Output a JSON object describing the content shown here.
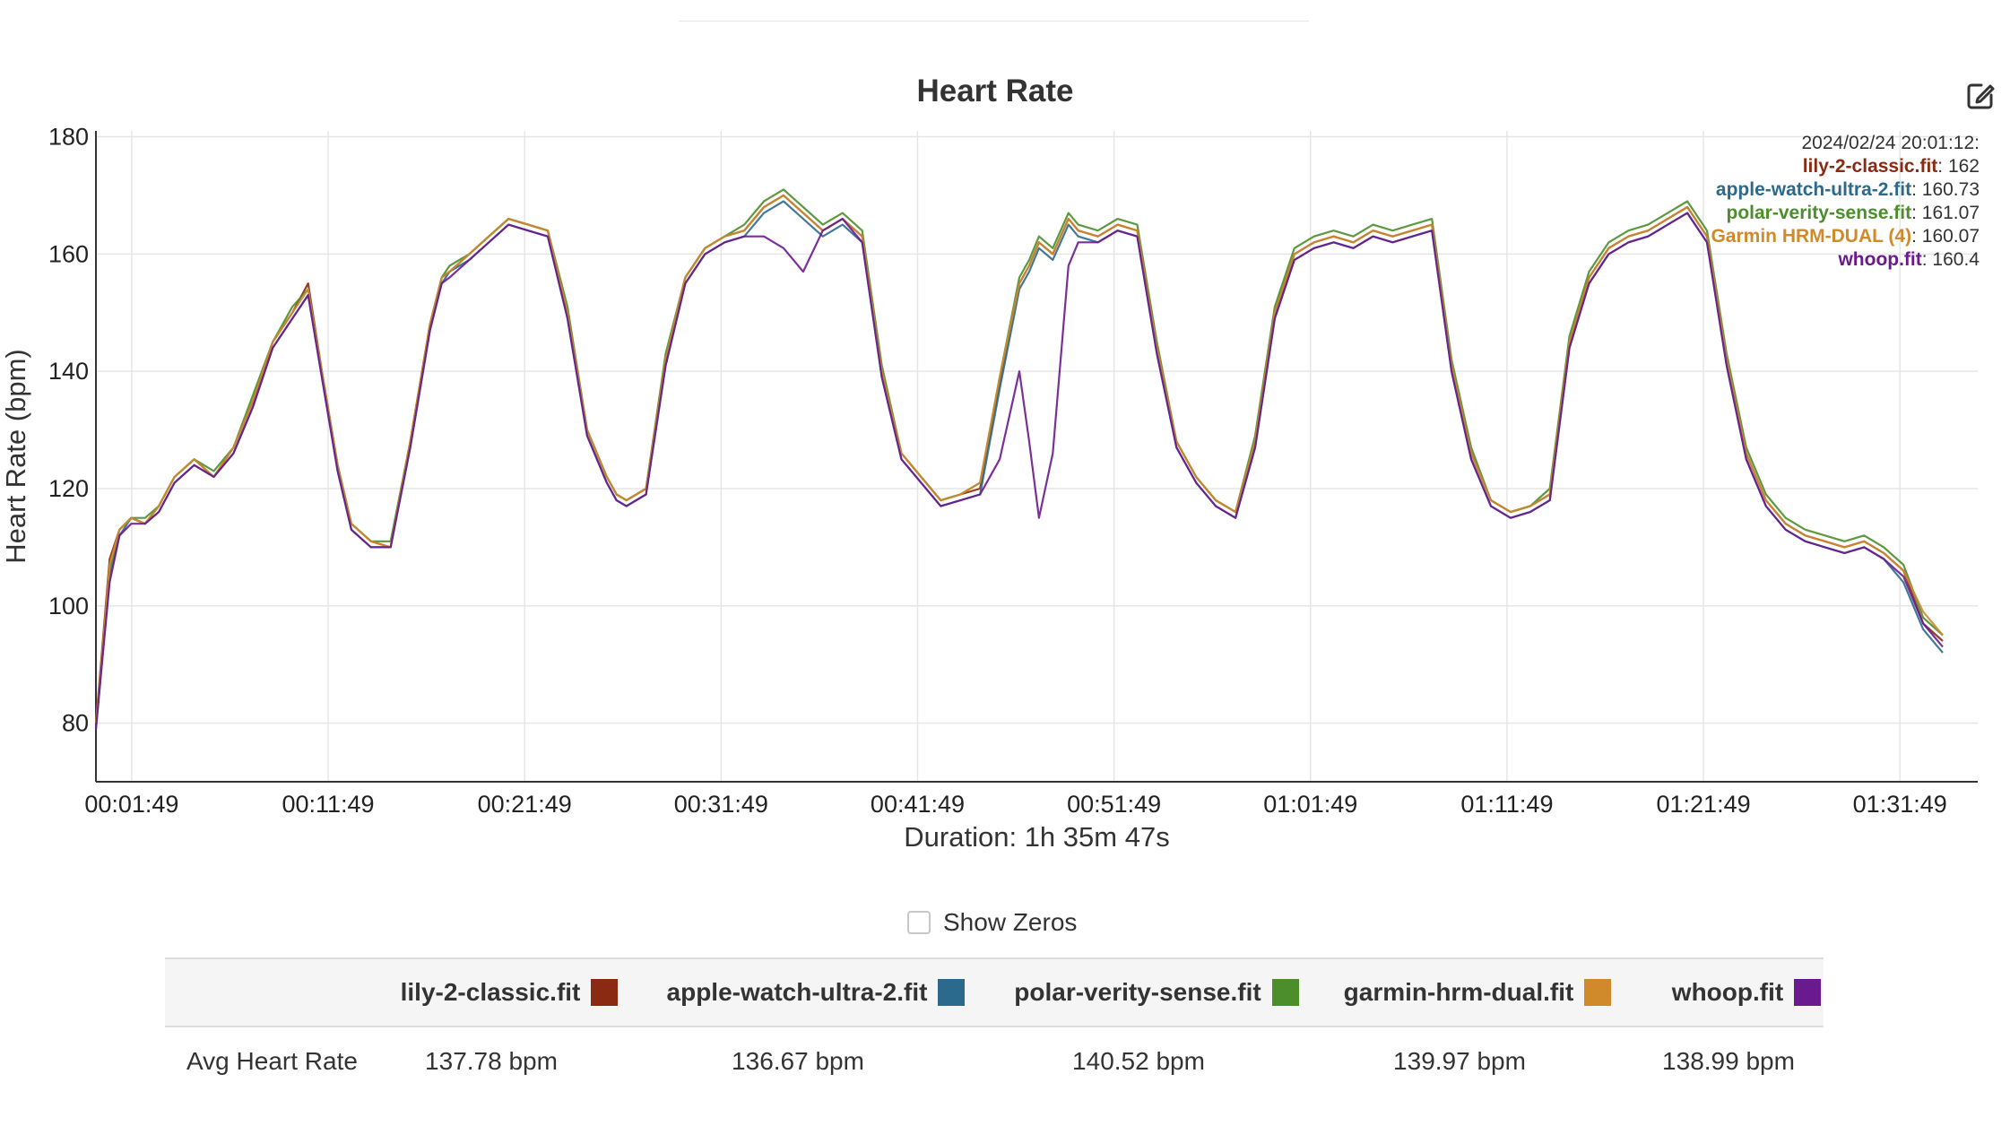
{
  "chart_data": {
    "type": "line",
    "title": "Heart Rate",
    "ylabel": "Heart Rate (bpm)",
    "xlabel": "Duration: 1h 35m 47s",
    "ylim": [
      70,
      181
    ],
    "yticks": [
      80,
      100,
      120,
      140,
      160,
      180
    ],
    "xlim_minutes": [
      0,
      95.78
    ],
    "x_tick_labels": [
      "00:01:49",
      "00:11:49",
      "00:21:49",
      "00:31:49",
      "00:41:49",
      "00:51:49",
      "01:01:49",
      "01:11:49",
      "01:21:49",
      "01:31:49"
    ],
    "x_tick_minutes": [
      1.82,
      11.82,
      21.82,
      31.82,
      41.82,
      51.82,
      61.82,
      71.82,
      81.82,
      91.82
    ],
    "grid": true,
    "x_minutes": [
      0,
      0.3,
      0.7,
      1.2,
      1.8,
      2.5,
      3.2,
      4,
      5,
      6,
      7,
      8,
      9,
      10,
      10.8,
      11.5,
      12.3,
      13,
      14,
      15,
      16,
      17,
      17.6,
      18,
      19,
      20,
      21,
      22,
      23,
      24,
      25,
      26,
      26.5,
      27,
      28,
      29,
      30,
      31,
      32,
      33,
      34,
      35,
      36,
      37,
      38,
      39,
      40,
      41,
      42,
      43,
      44,
      45,
      46,
      47,
      47.5,
      48,
      48.7,
      49.5,
      50,
      51,
      52,
      53,
      54,
      55,
      56,
      57,
      58,
      59,
      60,
      61,
      62,
      63,
      64,
      65,
      66,
      67,
      68,
      69,
      70,
      71,
      72,
      73,
      74,
      75,
      76,
      77,
      78,
      79,
      80,
      81,
      82,
      83,
      84,
      85,
      86,
      87,
      88,
      89,
      90,
      91,
      92,
      93,
      94,
      95,
      95.5,
      95.78
    ],
    "series": [
      {
        "name": "lily-2-classic.fit",
        "color": "#8b2a12",
        "values": [
          80,
          92,
          108,
          113,
          115,
          114,
          117,
          122,
          125,
          122,
          127,
          135,
          145,
          150,
          155,
          140,
          124,
          114,
          111,
          110,
          128,
          148,
          156,
          157,
          160,
          163,
          166,
          165,
          164,
          150,
          130,
          122,
          119,
          118,
          120,
          142,
          156,
          161,
          163,
          164,
          168,
          170,
          167,
          164,
          166,
          163,
          140,
          126,
          122,
          118,
          119,
          120,
          138,
          155,
          158,
          162,
          160,
          166,
          164,
          163,
          165,
          164,
          144,
          128,
          122,
          118,
          116,
          128,
          150,
          160,
          162,
          163,
          162,
          164,
          163,
          164,
          165,
          141,
          126,
          118,
          116,
          117,
          119,
          145,
          156,
          161,
          163,
          164,
          166,
          168,
          163,
          142,
          126,
          118,
          114,
          112,
          111,
          110,
          111,
          109,
          106,
          97,
          94
        ]
      },
      {
        "name": "apple-watch-ultra-2.fit",
        "color": "#2c6a8d",
        "values": [
          79,
          90,
          105,
          112,
          115,
          114,
          116,
          121,
          124,
          122,
          126,
          134,
          144,
          149,
          153,
          139,
          123,
          113,
          110,
          110,
          127,
          147,
          155,
          157,
          159,
          162,
          165,
          164,
          163,
          149,
          129,
          121,
          118,
          117,
          119,
          141,
          155,
          160,
          162,
          163,
          167,
          169,
          166,
          163,
          165,
          162,
          139,
          125,
          121,
          117,
          118,
          119,
          137,
          154,
          157,
          161,
          159,
          165,
          163,
          162,
          164,
          163,
          143,
          127,
          121,
          117,
          115,
          127,
          149,
          159,
          161,
          162,
          161,
          163,
          162,
          163,
          164,
          140,
          125,
          117,
          115,
          116,
          118,
          144,
          155,
          160,
          162,
          163,
          165,
          167,
          162,
          141,
          125,
          117,
          113,
          111,
          110,
          109,
          110,
          108,
          104,
          96,
          92
        ]
      },
      {
        "name": "polar-verity-sense.fit",
        "color": "#4b8e2a",
        "values": [
          80,
          91,
          106,
          113,
          115,
          115,
          117,
          122,
          125,
          123,
          127,
          136,
          145,
          151,
          154,
          140,
          124,
          114,
          111,
          111,
          128,
          148,
          156,
          158,
          160,
          163,
          166,
          165,
          164,
          151,
          130,
          122,
          119,
          118,
          120,
          143,
          156,
          161,
          163,
          165,
          169,
          171,
          168,
          165,
          167,
          164,
          141,
          126,
          122,
          118,
          119,
          121,
          139,
          156,
          159,
          163,
          161,
          167,
          165,
          164,
          166,
          165,
          145,
          128,
          122,
          118,
          116,
          129,
          151,
          161,
          163,
          164,
          163,
          165,
          164,
          165,
          166,
          142,
          127,
          118,
          116,
          117,
          120,
          146,
          157,
          162,
          164,
          165,
          167,
          169,
          164,
          143,
          127,
          119,
          115,
          113,
          112,
          111,
          112,
          110,
          107,
          98,
          95
        ]
      },
      {
        "name": "garmin-hrm-dual.fit",
        "color": "#d08a2c",
        "values": [
          80,
          91,
          107,
          113,
          115,
          114,
          117,
          122,
          125,
          122,
          127,
          135,
          145,
          150,
          154,
          140,
          124,
          114,
          111,
          110,
          128,
          148,
          156,
          157,
          160,
          163,
          166,
          165,
          164,
          150,
          130,
          122,
          119,
          118,
          120,
          142,
          156,
          161,
          163,
          164,
          168,
          170,
          167,
          164,
          166,
          163,
          140,
          126,
          122,
          118,
          119,
          121,
          139,
          155,
          158,
          162,
          160,
          166,
          164,
          163,
          165,
          164,
          144,
          128,
          122,
          118,
          116,
          128,
          150,
          160,
          162,
          163,
          162,
          164,
          163,
          164,
          165,
          141,
          126,
          118,
          116,
          117,
          119,
          145,
          156,
          161,
          163,
          164,
          166,
          168,
          163,
          142,
          126,
          118,
          114,
          112,
          111,
          110,
          111,
          109,
          106,
          99,
          95
        ]
      },
      {
        "name": "whoop.fit",
        "color": "#6a1a8e",
        "values": [
          79,
          90,
          104,
          112,
          114,
          114,
          116,
          121,
          124,
          122,
          126,
          134,
          144,
          149,
          153,
          139,
          123,
          113,
          110,
          110,
          127,
          147,
          155,
          156,
          159,
          162,
          165,
          164,
          163,
          149,
          129,
          121,
          118,
          117,
          119,
          141,
          155,
          160,
          162,
          163,
          163,
          161,
          157,
          164,
          166,
          162,
          139,
          125,
          121,
          117,
          118,
          119,
          125,
          140,
          128,
          115,
          126,
          158,
          162,
          162,
          164,
          163,
          143,
          127,
          121,
          117,
          115,
          127,
          149,
          159,
          161,
          162,
          161,
          163,
          162,
          163,
          164,
          140,
          125,
          117,
          115,
          116,
          118,
          144,
          155,
          160,
          162,
          163,
          165,
          167,
          162,
          141,
          125,
          117,
          113,
          111,
          110,
          109,
          110,
          108,
          105,
          97,
          93
        ]
      }
    ],
    "tooltip": {
      "header": "2024/02/24 20:01:12:",
      "entries": [
        {
          "name": "lily-2-classic.fit",
          "value": "162",
          "color": "#8b2a12"
        },
        {
          "name": "apple-watch-ultra-2.fit",
          "value": "160.73",
          "color": "#2c6a8d"
        },
        {
          "name": "polar-verity-sense.fit",
          "value": "161.07",
          "color": "#4b8e2a"
        },
        {
          "name": "Garmin HRM-DUAL (4)",
          "value": "160.07",
          "color": "#d08a2c"
        },
        {
          "name": "whoop.fit",
          "value": "160.4",
          "color": "#6a1a8e"
        }
      ]
    }
  },
  "controls": {
    "show_zeros_label": "Show Zeros",
    "show_zeros_checked": false,
    "edit_icon": "edit-pencil-icon"
  },
  "stats_table": {
    "row_label": "Avg Heart Rate",
    "columns": [
      {
        "name": "lily-2-classic.fit",
        "color": "#8b2a12",
        "value": "137.78 bpm"
      },
      {
        "name": "apple-watch-ultra-2.fit",
        "color": "#2c6a8d",
        "value": "136.67 bpm"
      },
      {
        "name": "polar-verity-sense.fit",
        "color": "#4b8e2a",
        "value": "140.52 bpm"
      },
      {
        "name": "garmin-hrm-dual.fit",
        "color": "#d08a2c",
        "value": "139.97 bpm"
      },
      {
        "name": "whoop.fit",
        "color": "#6a1a8e",
        "value": "138.99 bpm"
      }
    ]
  }
}
